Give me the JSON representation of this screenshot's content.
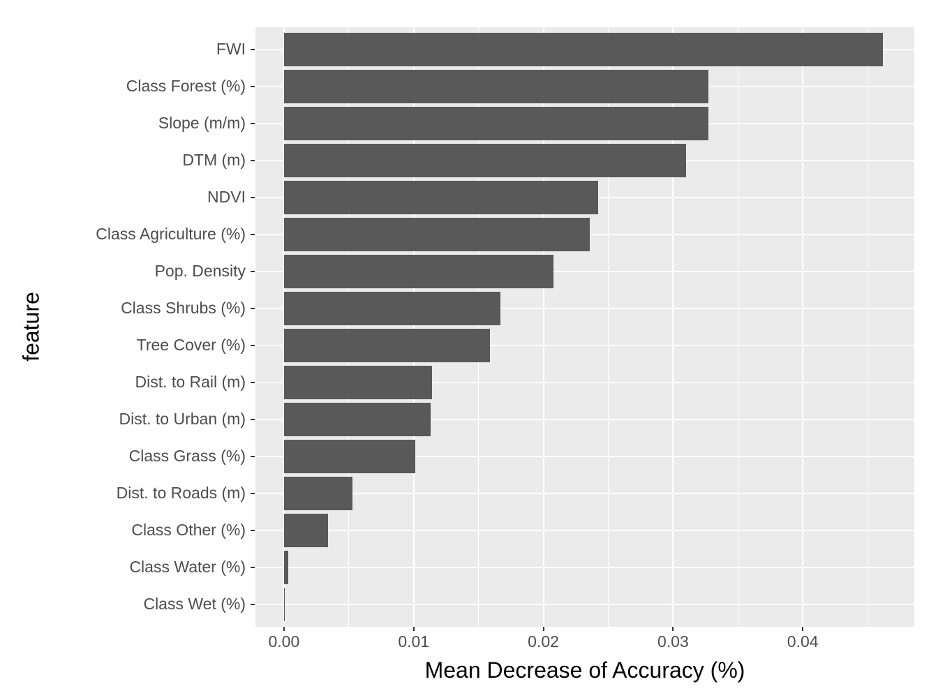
{
  "chart_data": {
    "type": "bar",
    "orientation": "horizontal",
    "title": "",
    "xlabel": "Mean Decrease of Accuracy (%)",
    "ylabel": "feature",
    "categories": [
      "FWI",
      "Class Forest (%)",
      "Slope (m/m)",
      "DTM (m)",
      "NDVI",
      "Class Agriculture (%)",
      "Pop. Density",
      "Class Shrubs (%)",
      "Tree Cover (%)",
      "Dist. to Rail (m)",
      "Dist. to Urban (m)",
      "Class Grass (%)",
      "Dist. to Roads (m)",
      "Class Other (%)",
      "Class Water (%)",
      "Class Wet (%)"
    ],
    "values": [
      0.0462,
      0.0327,
      0.0327,
      0.031,
      0.0242,
      0.0236,
      0.0208,
      0.0167,
      0.0159,
      0.0114,
      0.0113,
      0.0101,
      0.0053,
      0.0034,
      0.00035,
      5e-05
    ],
    "x_ticks": [
      0.0,
      0.01,
      0.02,
      0.03,
      0.04
    ],
    "x_tick_labels": [
      "0.00",
      "0.01",
      "0.02",
      "0.03",
      "0.04"
    ],
    "xlim": [
      -0.0022,
      0.0486
    ],
    "bar_width_fraction": 0.9,
    "grid": "major-and-minor, white on gray panel",
    "legend": "none",
    "colors": {
      "bar_fill": "#595959",
      "panel_bg": "#EBEBEB",
      "grid": "#FFFFFF",
      "tick_label": "#4D4D4D",
      "axis_title": "#000000",
      "tick_mark": "#333333",
      "page_bg": "#FFFFFF"
    }
  }
}
